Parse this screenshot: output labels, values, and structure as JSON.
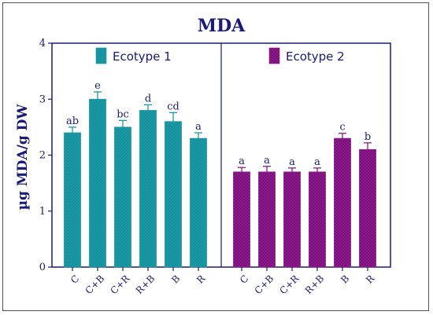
{
  "chart_data": {
    "type": "bar",
    "title": "MDA",
    "ylabel": "µg MDA/g DW",
    "xlabel": "",
    "ylim": [
      0,
      4
    ],
    "yticks": [
      0,
      1,
      2,
      3,
      4
    ],
    "grid": false,
    "legend_placement": "top (one entry per panel)",
    "categories": [
      "C",
      "C+B",
      "C+R",
      "R+B",
      "B",
      "R"
    ],
    "series": [
      {
        "name": "Ecotype 1",
        "color": "#1a9aa6",
        "values": [
          2.4,
          3.0,
          2.5,
          2.8,
          2.6,
          2.3
        ],
        "errors": [
          0.1,
          0.13,
          0.12,
          0.1,
          0.16,
          0.1
        ],
        "letters": [
          "ab",
          "e",
          "bc",
          "d",
          "cd",
          "a"
        ]
      },
      {
        "name": "Ecotype 2",
        "color": "#8e1a8e",
        "values": [
          1.7,
          1.7,
          1.7,
          1.7,
          2.3,
          2.1
        ],
        "errors": [
          0.08,
          0.1,
          0.07,
          0.07,
          0.09,
          0.12
        ],
        "letters": [
          "a",
          "a",
          "a",
          "a",
          "c",
          "b"
        ]
      }
    ]
  },
  "colors": {
    "axis": "#1a1a7a",
    "text": "#1a1a7a",
    "frame": "#555555"
  }
}
